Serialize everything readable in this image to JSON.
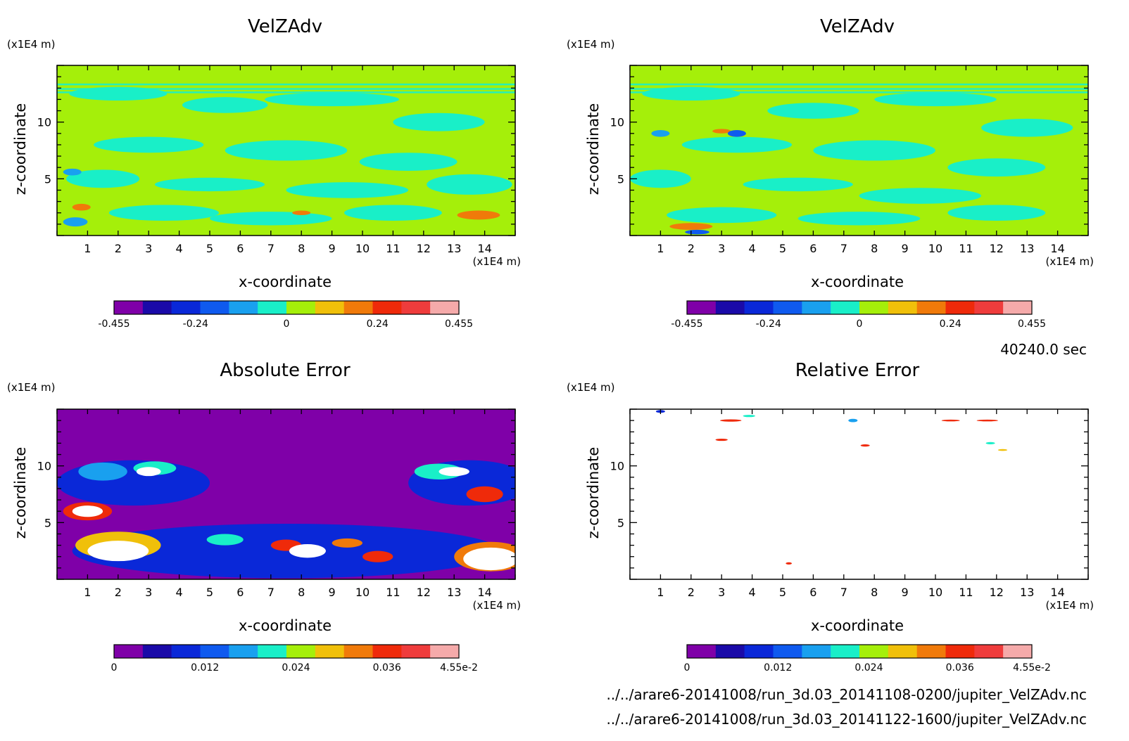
{
  "time_label": "40240.0 sec",
  "files": [
    "../../arare6-20141008/run_3d.03_20141108-0200/jupiter_VelZAdv.nc",
    "../../arare6-20141008/run_3d.03_20141122-1600/jupiter_VelZAdv.nc"
  ],
  "colormap": [
    "#7f00a8",
    "#1a0aa8",
    "#0a28d8",
    "#0f5aef",
    "#19a0ef",
    "#19efc8",
    "#a5ef0a",
    "#f0c00a",
    "#f07a0a",
    "#ef2a0a",
    "#ef3c3c",
    "#f5aaaa"
  ],
  "chart_data": [
    {
      "type": "heatmap",
      "title": "VelZAdv",
      "xlabel": "x-coordinate",
      "ylabel": "z-coordinate",
      "x_unit": "(x1E4 m)",
      "y_unit": "(x1E4 m)",
      "xlim": [
        0,
        15
      ],
      "ylim": [
        0,
        15
      ],
      "xticks": [
        1,
        2,
        3,
        4,
        5,
        6,
        7,
        8,
        9,
        10,
        11,
        12,
        13,
        14
      ],
      "yticks": [
        5,
        10
      ],
      "background": "#a5ef0a",
      "colorbar": {
        "min": -0.455,
        "max": 0.455,
        "ticks": [
          -0.455,
          -0.24,
          0,
          0.24,
          0.455
        ],
        "tick_labels": [
          "-0.455",
          "-0.24",
          "0",
          "0.24",
          "0.455"
        ]
      },
      "features": [
        {
          "x": 2.0,
          "z": 12.5,
          "rx": 1.6,
          "rz": 0.6,
          "color": "#19efc8"
        },
        {
          "x": 5.5,
          "z": 11.5,
          "rx": 1.4,
          "rz": 0.7,
          "color": "#19efc8"
        },
        {
          "x": 9.0,
          "z": 12.0,
          "rx": 2.2,
          "rz": 0.6,
          "color": "#19efc8"
        },
        {
          "x": 12.5,
          "z": 10.0,
          "rx": 1.5,
          "rz": 0.8,
          "color": "#19efc8"
        },
        {
          "x": 3.0,
          "z": 8.0,
          "rx": 1.8,
          "rz": 0.7,
          "color": "#19efc8"
        },
        {
          "x": 7.5,
          "z": 7.5,
          "rx": 2.0,
          "rz": 0.9,
          "color": "#19efc8"
        },
        {
          "x": 11.5,
          "z": 6.5,
          "rx": 1.6,
          "rz": 0.8,
          "color": "#19efc8"
        },
        {
          "x": 1.5,
          "z": 5.0,
          "rx": 1.2,
          "rz": 0.8,
          "color": "#19efc8"
        },
        {
          "x": 5.0,
          "z": 4.5,
          "rx": 1.8,
          "rz": 0.6,
          "color": "#19efc8"
        },
        {
          "x": 9.5,
          "z": 4.0,
          "rx": 2.0,
          "rz": 0.7,
          "color": "#19efc8"
        },
        {
          "x": 13.5,
          "z": 4.5,
          "rx": 1.4,
          "rz": 0.9,
          "color": "#19efc8"
        },
        {
          "x": 3.5,
          "z": 2.0,
          "rx": 1.8,
          "rz": 0.7,
          "color": "#19efc8"
        },
        {
          "x": 7.0,
          "z": 1.5,
          "rx": 2.0,
          "rz": 0.6,
          "color": "#19efc8"
        },
        {
          "x": 11.0,
          "z": 2.0,
          "rx": 1.6,
          "rz": 0.7,
          "color": "#19efc8"
        },
        {
          "x": 0.5,
          "z": 5.6,
          "rx": 0.3,
          "rz": 0.3,
          "color": "#19a0ef"
        },
        {
          "x": 0.8,
          "z": 2.5,
          "rx": 0.3,
          "rz": 0.3,
          "color": "#f07a0a"
        },
        {
          "x": 0.6,
          "z": 1.2,
          "rx": 0.4,
          "rz": 0.4,
          "color": "#19a0ef"
        },
        {
          "x": 8.0,
          "z": 2.0,
          "rx": 0.3,
          "rz": 0.2,
          "color": "#f07a0a"
        },
        {
          "x": 13.8,
          "z": 1.8,
          "rx": 0.7,
          "rz": 0.4,
          "color": "#f07a0a"
        }
      ]
    },
    {
      "type": "heatmap",
      "title": "VelZAdv",
      "xlabel": "x-coordinate",
      "ylabel": "z-coordinate",
      "x_unit": "(x1E4 m)",
      "y_unit": "(x1E4 m)",
      "xlim": [
        0,
        15
      ],
      "ylim": [
        0,
        15
      ],
      "xticks": [
        1,
        2,
        3,
        4,
        5,
        6,
        7,
        8,
        9,
        10,
        11,
        12,
        13,
        14
      ],
      "yticks": [
        5,
        10
      ],
      "background": "#a5ef0a",
      "colorbar": {
        "min": -0.455,
        "max": 0.455,
        "ticks": [
          -0.455,
          -0.24,
          0,
          0.24,
          0.455
        ],
        "tick_labels": [
          "-0.455",
          "-0.24",
          "0",
          "0.24",
          "0.455"
        ]
      },
      "features": [
        {
          "x": 2.0,
          "z": 12.5,
          "rx": 1.6,
          "rz": 0.6,
          "color": "#19efc8"
        },
        {
          "x": 6.0,
          "z": 11.0,
          "rx": 1.5,
          "rz": 0.7,
          "color": "#19efc8"
        },
        {
          "x": 10.0,
          "z": 12.0,
          "rx": 2.0,
          "rz": 0.6,
          "color": "#19efc8"
        },
        {
          "x": 13.0,
          "z": 9.5,
          "rx": 1.5,
          "rz": 0.8,
          "color": "#19efc8"
        },
        {
          "x": 3.5,
          "z": 8.0,
          "rx": 1.8,
          "rz": 0.7,
          "color": "#19efc8"
        },
        {
          "x": 8.0,
          "z": 7.5,
          "rx": 2.0,
          "rz": 0.9,
          "color": "#19efc8"
        },
        {
          "x": 12.0,
          "z": 6.0,
          "rx": 1.6,
          "rz": 0.8,
          "color": "#19efc8"
        },
        {
          "x": 1.0,
          "z": 5.0,
          "rx": 1.0,
          "rz": 0.8,
          "color": "#19efc8"
        },
        {
          "x": 5.5,
          "z": 4.5,
          "rx": 1.8,
          "rz": 0.6,
          "color": "#19efc8"
        },
        {
          "x": 9.5,
          "z": 3.5,
          "rx": 2.0,
          "rz": 0.7,
          "color": "#19efc8"
        },
        {
          "x": 3.0,
          "z": 1.8,
          "rx": 1.8,
          "rz": 0.7,
          "color": "#19efc8"
        },
        {
          "x": 7.5,
          "z": 1.5,
          "rx": 2.0,
          "rz": 0.6,
          "color": "#19efc8"
        },
        {
          "x": 12.0,
          "z": 2.0,
          "rx": 1.6,
          "rz": 0.7,
          "color": "#19efc8"
        },
        {
          "x": 1.0,
          "z": 9.0,
          "rx": 0.3,
          "rz": 0.3,
          "color": "#19a0ef"
        },
        {
          "x": 3.0,
          "z": 9.2,
          "rx": 0.3,
          "rz": 0.2,
          "color": "#f07a0a"
        },
        {
          "x": 3.5,
          "z": 9.0,
          "rx": 0.3,
          "rz": 0.3,
          "color": "#0f5aef"
        },
        {
          "x": 2.0,
          "z": 0.8,
          "rx": 0.7,
          "rz": 0.3,
          "color": "#f07a0a"
        },
        {
          "x": 2.2,
          "z": 0.3,
          "rx": 0.4,
          "rz": 0.2,
          "color": "#0f5aef"
        }
      ]
    },
    {
      "type": "heatmap",
      "title": "Absolute Error",
      "xlabel": "x-coordinate",
      "ylabel": "z-coordinate",
      "x_unit": "(x1E4 m)",
      "y_unit": "(x1E4 m)",
      "xlim": [
        0,
        15
      ],
      "ylim": [
        0,
        15
      ],
      "xticks": [
        1,
        2,
        3,
        4,
        5,
        6,
        7,
        8,
        9,
        10,
        11,
        12,
        13,
        14
      ],
      "yticks": [
        5,
        10
      ],
      "background": "#7f00a8",
      "colorbar": {
        "min": 0,
        "max": 0.0455,
        "ticks": [
          0,
          0.012,
          0.024,
          0.036,
          0.0455
        ],
        "tick_labels": [
          "0",
          "0.012",
          "0.024",
          "0.036",
          "4.55e-2"
        ]
      },
      "features": [
        {
          "x": 2.5,
          "z": 8.5,
          "rx": 2.5,
          "rz": 2.0,
          "color": "#0a28d8"
        },
        {
          "x": 13.5,
          "z": 8.5,
          "rx": 2.0,
          "rz": 2.0,
          "color": "#0a28d8"
        },
        {
          "x": 7.5,
          "z": 2.5,
          "rx": 7.0,
          "rz": 2.4,
          "color": "#0a28d8"
        },
        {
          "x": 1.5,
          "z": 9.5,
          "rx": 0.8,
          "rz": 0.8,
          "color": "#19a0ef"
        },
        {
          "x": 3.2,
          "z": 9.8,
          "rx": 0.7,
          "rz": 0.6,
          "color": "#19efc8"
        },
        {
          "x": 1.0,
          "z": 6.0,
          "rx": 0.8,
          "rz": 0.8,
          "color": "#ef2a0a"
        },
        {
          "x": 1.0,
          "z": 6.0,
          "rx": 0.5,
          "rz": 0.5,
          "color": "#ffffff"
        },
        {
          "x": 3.0,
          "z": 9.5,
          "rx": 0.4,
          "rz": 0.4,
          "color": "#ffffff"
        },
        {
          "x": 2.0,
          "z": 3.0,
          "rx": 1.4,
          "rz": 1.2,
          "color": "#f0c00a"
        },
        {
          "x": 2.0,
          "z": 2.5,
          "rx": 1.0,
          "rz": 0.9,
          "color": "#ffffff"
        },
        {
          "x": 5.5,
          "z": 3.5,
          "rx": 0.6,
          "rz": 0.5,
          "color": "#19efc8"
        },
        {
          "x": 7.5,
          "z": 3.0,
          "rx": 0.5,
          "rz": 0.5,
          "color": "#ef2a0a"
        },
        {
          "x": 8.2,
          "z": 2.5,
          "rx": 0.6,
          "rz": 0.6,
          "color": "#ffffff"
        },
        {
          "x": 9.5,
          "z": 3.2,
          "rx": 0.5,
          "rz": 0.4,
          "color": "#f07a0a"
        },
        {
          "x": 10.5,
          "z": 2.0,
          "rx": 0.5,
          "rz": 0.5,
          "color": "#ef2a0a"
        },
        {
          "x": 12.5,
          "z": 9.5,
          "rx": 0.8,
          "rz": 0.7,
          "color": "#19efc8"
        },
        {
          "x": 13.0,
          "z": 9.5,
          "rx": 0.5,
          "rz": 0.4,
          "color": "#ffffff"
        },
        {
          "x": 14.0,
          "z": 7.5,
          "rx": 0.6,
          "rz": 0.7,
          "color": "#ef2a0a"
        },
        {
          "x": 14.2,
          "z": 2.0,
          "rx": 1.2,
          "rz": 1.3,
          "color": "#f07a0a"
        },
        {
          "x": 14.2,
          "z": 1.8,
          "rx": 0.9,
          "rz": 1.0,
          "color": "#ffffff"
        }
      ]
    },
    {
      "type": "heatmap",
      "title": "Relative Error",
      "xlabel": "x-coordinate",
      "ylabel": "z-coordinate",
      "x_unit": "(x1E4 m)",
      "y_unit": "(x1E4 m)",
      "xlim": [
        0,
        15
      ],
      "ylim": [
        0,
        15
      ],
      "xticks": [
        1,
        2,
        3,
        4,
        5,
        6,
        7,
        8,
        9,
        10,
        11,
        12,
        13,
        14
      ],
      "yticks": [
        5,
        10
      ],
      "background": "#ffffff",
      "colorbar": {
        "min": 0,
        "max": 0.0455,
        "ticks": [
          0,
          0.012,
          0.024,
          0.036,
          0.0455
        ],
        "tick_labels": [
          "0",
          "0.012",
          "0.024",
          "0.036",
          "4.55e-2"
        ]
      },
      "features": [
        {
          "x": 1.0,
          "z": 14.8,
          "rx": 0.15,
          "rz": 0.12,
          "color": "#0a28d8"
        },
        {
          "x": 3.3,
          "z": 14.0,
          "rx": 0.35,
          "rz": 0.1,
          "color": "#ef2a0a"
        },
        {
          "x": 3.9,
          "z": 14.4,
          "rx": 0.2,
          "rz": 0.1,
          "color": "#19efc8"
        },
        {
          "x": 3.0,
          "z": 12.3,
          "rx": 0.2,
          "rz": 0.1,
          "color": "#ef2a0a"
        },
        {
          "x": 7.3,
          "z": 14.0,
          "rx": 0.15,
          "rz": 0.15,
          "color": "#19a0ef"
        },
        {
          "x": 7.7,
          "z": 11.8,
          "rx": 0.15,
          "rz": 0.1,
          "color": "#ef2a0a"
        },
        {
          "x": 10.5,
          "z": 14.0,
          "rx": 0.3,
          "rz": 0.08,
          "color": "#ef2a0a"
        },
        {
          "x": 11.7,
          "z": 14.0,
          "rx": 0.35,
          "rz": 0.08,
          "color": "#ef2a0a"
        },
        {
          "x": 11.8,
          "z": 12.0,
          "rx": 0.15,
          "rz": 0.1,
          "color": "#19efc8"
        },
        {
          "x": 12.2,
          "z": 11.4,
          "rx": 0.15,
          "rz": 0.08,
          "color": "#f0c00a"
        },
        {
          "x": 5.2,
          "z": 1.4,
          "rx": 0.1,
          "rz": 0.1,
          "color": "#ef2a0a"
        }
      ]
    }
  ]
}
